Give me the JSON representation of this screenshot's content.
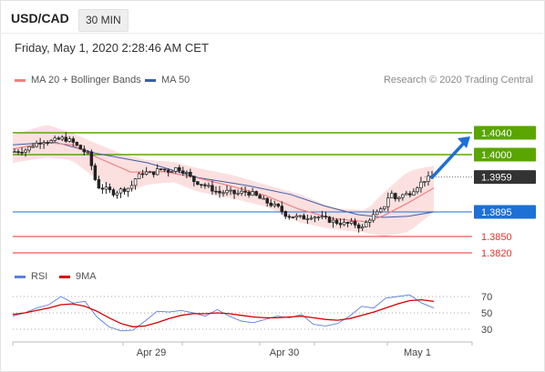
{
  "header": {
    "symbol": "USD/CAD",
    "interval": "30 MIN",
    "datetime": "Friday, May 1, 2020 2:28:46 AM CET",
    "credit": "Research © 2020 Trading Central"
  },
  "legend": {
    "ma20": "MA 20 + Bollinger Bands",
    "ma50": "MA 50",
    "rsi": "RSI",
    "ma9": "9MA"
  },
  "colors": {
    "green": "#5aa500",
    "blue": "#1e6fd6",
    "red": "#e8322a",
    "ma20": "#f08080",
    "ma50": "#3a5ea8",
    "band": "#fbd6d6",
    "last": "#333333",
    "rsi": "#5b7fe0",
    "rsi_ma": "#d40000"
  },
  "chart_data": [
    {
      "type": "candlestick",
      "title": "USD/CAD",
      "x_ticks": [
        "Apr 29",
        "Apr 30",
        "May 1"
      ],
      "ylim": [
        1.38,
        1.41
      ],
      "levels": [
        {
          "value": 1.404,
          "label": "1.4040",
          "role": "resistance"
        },
        {
          "value": 1.4,
          "label": "1.4000",
          "role": "resistance"
        },
        {
          "value": 1.3959,
          "label": "1.3959",
          "role": "last"
        },
        {
          "value": 1.3895,
          "label": "1.3895",
          "role": "pivot"
        },
        {
          "value": 1.385,
          "label": "1.3850",
          "role": "support"
        },
        {
          "value": 1.382,
          "label": "1.3820",
          "role": "support"
        }
      ],
      "close_path": [
        [
          0,
          1.4005
        ],
        [
          3,
          1.4009
        ],
        [
          5,
          1.4018
        ],
        [
          7,
          1.4026
        ],
        [
          9,
          1.4024
        ],
        [
          12,
          1.403
        ],
        [
          14,
          1.4024
        ],
        [
          16,
          1.4011
        ],
        [
          18,
          1.4
        ],
        [
          20,
          1.3942
        ],
        [
          22,
          1.3937
        ],
        [
          24,
          1.393
        ],
        [
          26,
          1.3936
        ],
        [
          28,
          1.394
        ],
        [
          29,
          1.3955
        ],
        [
          31,
          1.3968
        ],
        [
          33,
          1.3965
        ],
        [
          35,
          1.3974
        ],
        [
          37,
          1.397
        ],
        [
          39,
          1.3976
        ],
        [
          41,
          1.3968
        ],
        [
          43,
          1.3952
        ],
        [
          45,
          1.3946
        ],
        [
          47,
          1.3938
        ],
        [
          49,
          1.393
        ],
        [
          51,
          1.3932
        ],
        [
          53,
          1.3928
        ],
        [
          55,
          1.3932
        ],
        [
          57,
          1.3928
        ],
        [
          59,
          1.3918
        ],
        [
          61,
          1.391
        ],
        [
          63,
          1.3903
        ],
        [
          65,
          1.3889
        ],
        [
          67,
          1.3886
        ],
        [
          69,
          1.3884
        ],
        [
          71,
          1.3888
        ],
        [
          73,
          1.3885
        ],
        [
          75,
          1.388
        ],
        [
          77,
          1.3876
        ],
        [
          79,
          1.3873
        ],
        [
          81,
          1.3874
        ],
        [
          83,
          1.3865
        ],
        [
          84,
          1.3876
        ],
        [
          85,
          1.3885
        ],
        [
          87,
          1.3894
        ],
        [
          88,
          1.3902
        ],
        [
          89,
          1.3921
        ],
        [
          90,
          1.3928
        ],
        [
          91,
          1.3918
        ],
        [
          92,
          1.3925
        ],
        [
          94,
          1.3928
        ],
        [
          96,
          1.3942
        ],
        [
          98,
          1.3955
        ],
        [
          100,
          1.3959
        ]
      ],
      "ma20_path": [
        [
          0,
          1.401
        ],
        [
          8,
          1.4022
        ],
        [
          14,
          1.4018
        ],
        [
          20,
          1.3995
        ],
        [
          28,
          1.3968
        ],
        [
          36,
          1.3969
        ],
        [
          44,
          1.3957
        ],
        [
          52,
          1.3942
        ],
        [
          60,
          1.3925
        ],
        [
          68,
          1.39
        ],
        [
          76,
          1.3883
        ],
        [
          84,
          1.3877
        ],
        [
          88,
          1.3888
        ],
        [
          94,
          1.3912
        ],
        [
          100,
          1.3939
        ]
      ],
      "ma50_path": [
        [
          0,
          1.4018
        ],
        [
          10,
          1.4023
        ],
        [
          20,
          1.4002
        ],
        [
          32,
          1.3985
        ],
        [
          44,
          1.3958
        ],
        [
          56,
          1.3943
        ],
        [
          66,
          1.3927
        ],
        [
          74,
          1.3906
        ],
        [
          82,
          1.389
        ],
        [
          88,
          1.3885
        ],
        [
          94,
          1.3887
        ],
        [
          100,
          1.3895
        ]
      ],
      "bands_upper": [
        [
          0,
          1.4036
        ],
        [
          8,
          1.4055
        ],
        [
          14,
          1.404
        ],
        [
          20,
          1.402
        ],
        [
          26,
          1.4001
        ],
        [
          32,
          1.399
        ],
        [
          38,
          1.3987
        ],
        [
          44,
          1.3975
        ],
        [
          52,
          1.3963
        ],
        [
          60,
          1.3945
        ],
        [
          68,
          1.3928
        ],
        [
          76,
          1.3902
        ],
        [
          84,
          1.3898
        ],
        [
          88,
          1.393
        ],
        [
          94,
          1.397
        ],
        [
          100,
          1.398
        ]
      ],
      "bands_lower": [
        [
          0,
          1.3985
        ],
        [
          8,
          1.3995
        ],
        [
          14,
          1.399
        ],
        [
          20,
          1.3955
        ],
        [
          26,
          1.3928
        ],
        [
          32,
          1.3945
        ],
        [
          38,
          1.395
        ],
        [
          44,
          1.3932
        ],
        [
          52,
          1.392
        ],
        [
          60,
          1.3905
        ],
        [
          68,
          1.3876
        ],
        [
          76,
          1.3863
        ],
        [
          84,
          1.3857
        ],
        [
          88,
          1.385
        ],
        [
          94,
          1.3858
        ],
        [
          100,
          1.3895
        ]
      ],
      "forecast_arrow": {
        "from": 1.3958,
        "to": 1.404
      }
    },
    {
      "type": "line",
      "title": "RSI",
      "ylim": [
        0,
        100
      ],
      "y_ticks": [
        30,
        50,
        70
      ],
      "series": [
        {
          "name": "RSI",
          "values": [
            46,
            50,
            56,
            60,
            70,
            62,
            64,
            45,
            33,
            28,
            29,
            40,
            52,
            51,
            53,
            50,
            46,
            54,
            46,
            40,
            38,
            42,
            46,
            44,
            48,
            36,
            34,
            37,
            46,
            58,
            56,
            68,
            70,
            72,
            62,
            56
          ]
        },
        {
          "name": "9MA",
          "values": [
            48,
            50,
            53,
            56,
            60,
            61,
            58,
            52,
            44,
            37,
            33,
            34,
            38,
            43,
            47,
            49,
            49,
            50,
            49,
            47,
            45,
            44,
            44,
            45,
            46,
            44,
            42,
            41,
            43,
            47,
            51,
            56,
            61,
            65,
            66,
            64
          ]
        }
      ]
    }
  ]
}
